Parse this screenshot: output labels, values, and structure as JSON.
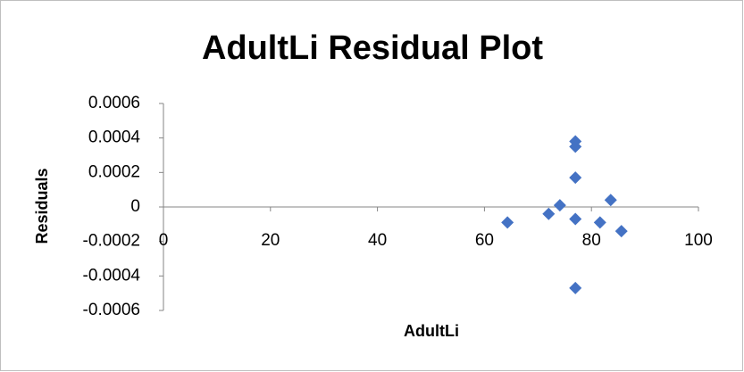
{
  "chart_data": {
    "type": "scatter",
    "title": "AdultLi  Residual Plot",
    "x_label": "AdultLi",
    "y_label": "Residuals",
    "series": [
      {
        "name": "Residuals",
        "color": "#4472c4",
        "x": [
          64.3,
          72,
          74.1,
          77,
          77,
          77,
          77,
          77,
          81.6,
          83.6,
          85.6
        ],
        "values": [
          -9e-05,
          -4e-05,
          1e-05,
          0.00038,
          0.00035,
          0.00017,
          -7e-05,
          -0.00047,
          -9e-05,
          4e-05,
          -0.00014
        ]
      }
    ],
    "xlim": [
      0,
      100
    ],
    "xticks": [
      0,
      20,
      40,
      60,
      80,
      100
    ],
    "ylim": [
      -0.0006,
      0.0006
    ],
    "yticks": [
      -0.0006,
      -0.0004,
      -0.0002,
      0,
      0.0002,
      0.0004,
      0.0006
    ],
    "grid": false
  }
}
